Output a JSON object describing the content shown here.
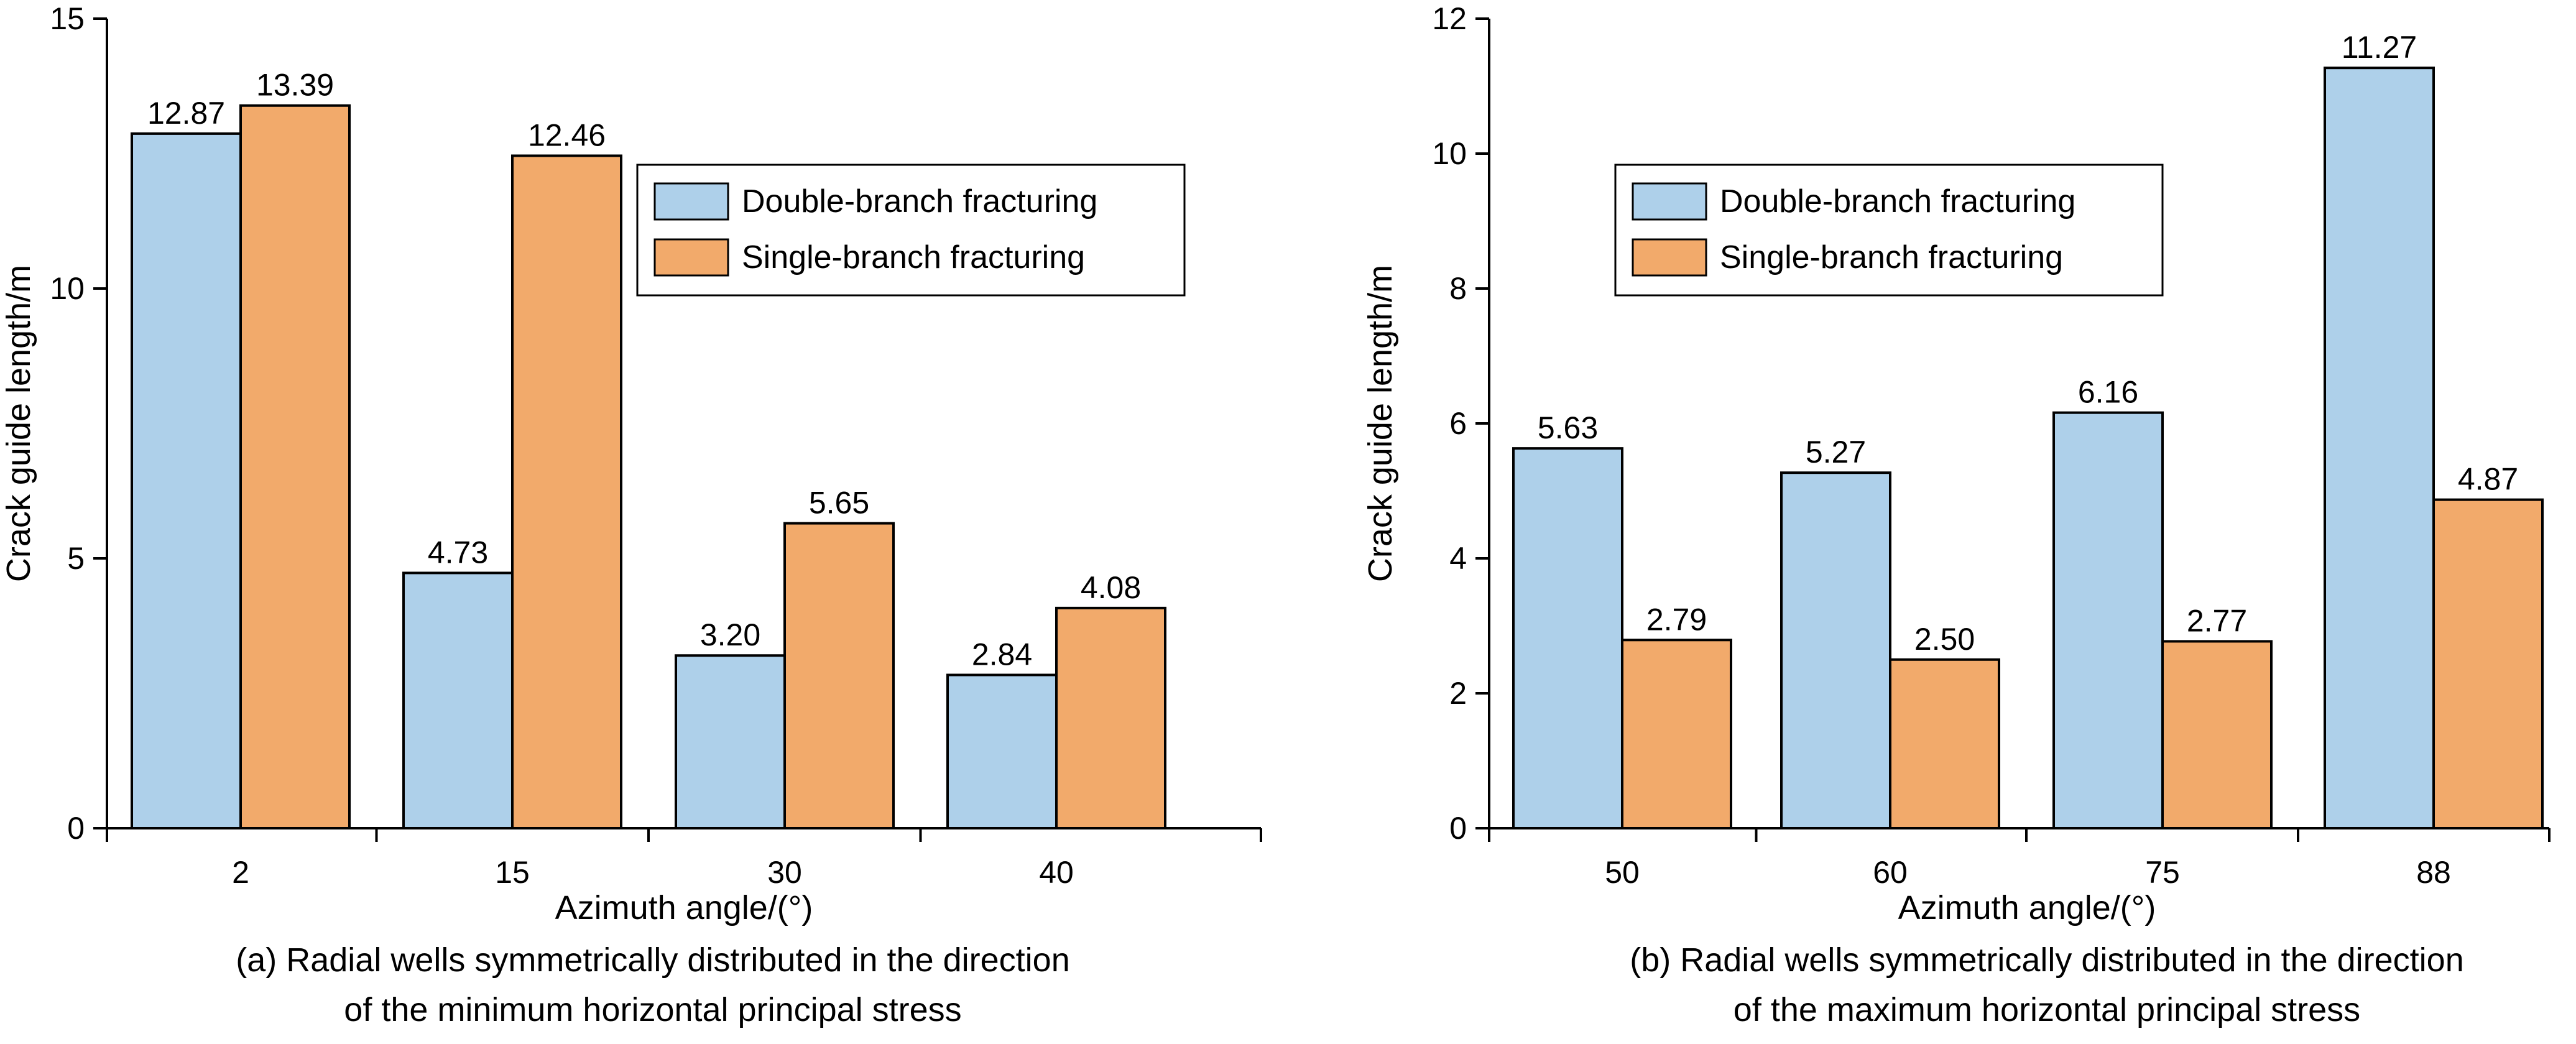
{
  "chart_data": [
    {
      "type": "bar",
      "categories": [
        "2",
        "15",
        "30",
        "40"
      ],
      "series": [
        {
          "name": "Double-branch fracturing",
          "values": [
            12.87,
            4.73,
            3.2,
            2.84
          ],
          "labels": [
            "12.87",
            "4.73",
            "3.20",
            "2.84"
          ],
          "color": "#aed0ea"
        },
        {
          "name": "Single-branch fracturing",
          "values": [
            13.39,
            12.46,
            5.65,
            4.08
          ],
          "labels": [
            "13.39",
            "12.46",
            "5.65",
            "4.08"
          ],
          "color": "#f2aa6b"
        }
      ],
      "xlabel": "Azimuth angle/(°)",
      "ylabel": "Crack guide length/m",
      "ylim": [
        0,
        15
      ],
      "yticks": [
        0,
        5,
        10,
        15
      ],
      "legend_position": "top-right",
      "caption_lines": [
        "(a) Radial wells symmetrically distributed in the direction",
        "of the minimum horizontal principal stress"
      ]
    },
    {
      "type": "bar",
      "categories": [
        "50",
        "60",
        "75",
        "88"
      ],
      "series": [
        {
          "name": "Double-branch fracturing",
          "values": [
            5.63,
            5.27,
            6.16,
            11.27
          ],
          "labels": [
            "5.63",
            "5.27",
            "6.16",
            "11.27"
          ],
          "color": "#aed0ea"
        },
        {
          "name": "Single-branch fracturing",
          "values": [
            2.79,
            2.5,
            2.77,
            4.87
          ],
          "labels": [
            "2.79",
            "2.50",
            "2.77",
            "4.87"
          ],
          "color": "#f2aa6b"
        }
      ],
      "xlabel": "Azimuth angle/(°)",
      "ylabel": "Crack guide length/m",
      "ylim": [
        0,
        12
      ],
      "yticks": [
        0,
        2,
        4,
        6,
        8,
        10,
        12
      ],
      "legend_position": "top-center",
      "caption_lines": [
        "(b) Radial wells symmetrically distributed in the direction",
        "of the maximum horizontal principal stress"
      ]
    }
  ]
}
